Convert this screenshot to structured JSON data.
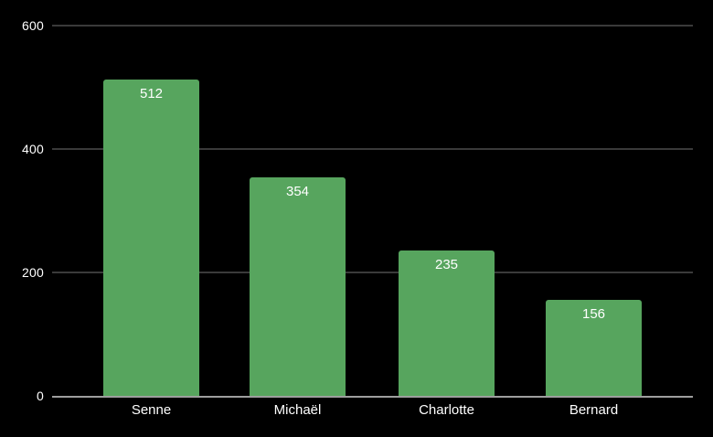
{
  "chart_data": {
    "type": "bar",
    "categories": [
      "Senne",
      "Michaël",
      "Charlotte",
      "Bernard"
    ],
    "values": [
      512,
      354,
      235,
      156
    ],
    "yticks": [
      0,
      200,
      400,
      600
    ],
    "ylim": [
      0,
      600
    ],
    "grid": true,
    "legend": false,
    "data_labels": "inside-top",
    "colors": {
      "background": "#000000",
      "bar": "#57a55e",
      "text": "#ffffff",
      "gridline": "#3a3a3a",
      "axis_line": "#9e9e9e"
    }
  }
}
